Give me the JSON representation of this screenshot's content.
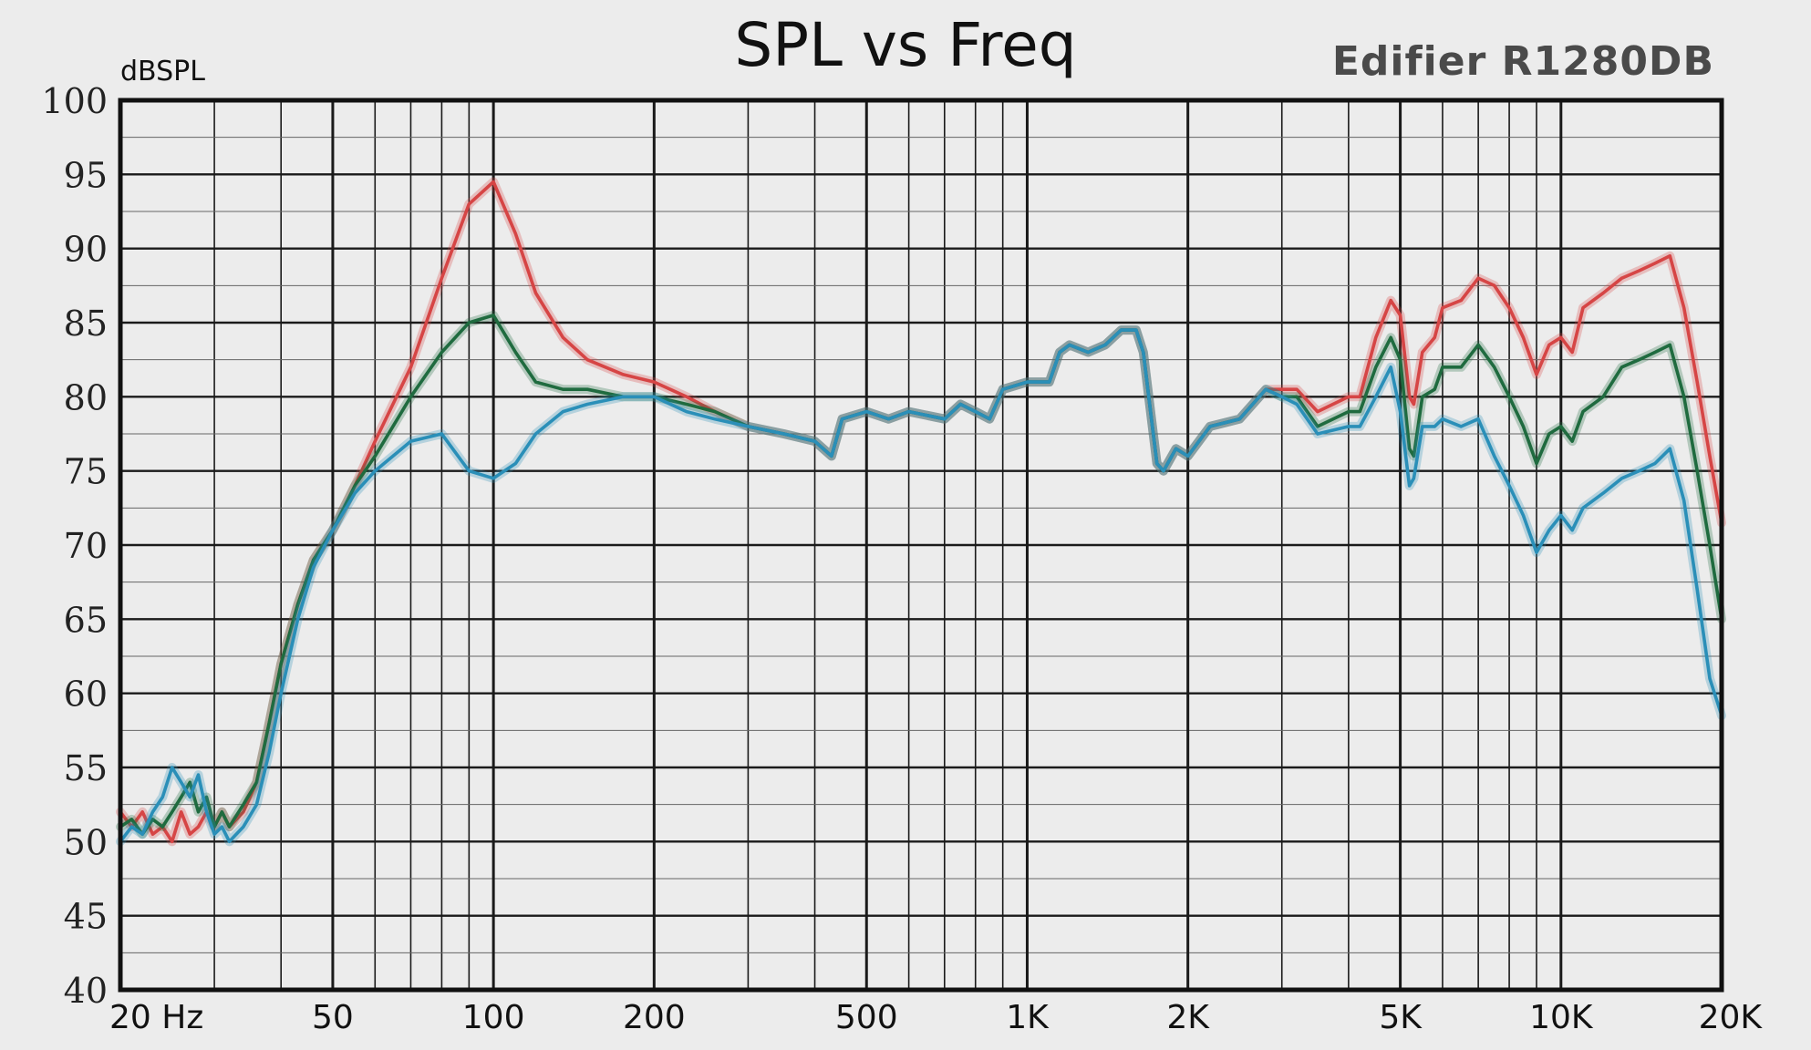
{
  "chart_data": {
    "type": "line",
    "title": "SPL vs Freq",
    "subtitle": "Edifier R1280DB",
    "xlabel": "",
    "ylabel": "dBSPL",
    "x_scale": "log",
    "xlim": [
      20,
      20000
    ],
    "ylim": [
      40,
      100
    ],
    "grid": true,
    "x_ticks": [
      {
        "value": 20,
        "label": "20 Hz"
      },
      {
        "value": 50,
        "label": "50"
      },
      {
        "value": 100,
        "label": "100"
      },
      {
        "value": 200,
        "label": "200"
      },
      {
        "value": 500,
        "label": "500"
      },
      {
        "value": 1000,
        "label": "1K"
      },
      {
        "value": 2000,
        "label": "2K"
      },
      {
        "value": 5000,
        "label": "5K"
      },
      {
        "value": 10000,
        "label": "10K"
      },
      {
        "value": 20000,
        "label": "20K"
      }
    ],
    "y_ticks": [
      100,
      95,
      90,
      85,
      80,
      75,
      70,
      65,
      60,
      55,
      50,
      45,
      40
    ],
    "series": [
      {
        "color": "#d64545",
        "points": [
          [
            20,
            52
          ],
          [
            21,
            51
          ],
          [
            22,
            52
          ],
          [
            23,
            50.5
          ],
          [
            24,
            51
          ],
          [
            25,
            50
          ],
          [
            26,
            52
          ],
          [
            27,
            50.5
          ],
          [
            28,
            51
          ],
          [
            29,
            52
          ],
          [
            30,
            51
          ],
          [
            31,
            52
          ],
          [
            32,
            51
          ],
          [
            34,
            52
          ],
          [
            36,
            54
          ],
          [
            38,
            58
          ],
          [
            40,
            62
          ],
          [
            43,
            66
          ],
          [
            46,
            69
          ],
          [
            50,
            71
          ],
          [
            55,
            74
          ],
          [
            60,
            77
          ],
          [
            70,
            82
          ],
          [
            80,
            88
          ],
          [
            90,
            93
          ],
          [
            100,
            94.5
          ],
          [
            110,
            91
          ],
          [
            120,
            87
          ],
          [
            135,
            84
          ],
          [
            150,
            82.5
          ],
          [
            175,
            81.5
          ],
          [
            200,
            81
          ],
          [
            230,
            80
          ],
          [
            260,
            79
          ],
          [
            300,
            78
          ],
          [
            350,
            77.5
          ],
          [
            400,
            77
          ],
          [
            430,
            76
          ],
          [
            450,
            78.5
          ],
          [
            500,
            79
          ],
          [
            550,
            78.5
          ],
          [
            600,
            79
          ],
          [
            700,
            78.5
          ],
          [
            750,
            79.5
          ],
          [
            800,
            79
          ],
          [
            850,
            78.5
          ],
          [
            900,
            80.5
          ],
          [
            1000,
            81
          ],
          [
            1100,
            81
          ],
          [
            1150,
            83
          ],
          [
            1200,
            83.5
          ],
          [
            1300,
            83
          ],
          [
            1400,
            83.5
          ],
          [
            1500,
            84.5
          ],
          [
            1600,
            84.5
          ],
          [
            1650,
            83
          ],
          [
            1750,
            75.5
          ],
          [
            1800,
            75
          ],
          [
            1900,
            76.5
          ],
          [
            2000,
            76
          ],
          [
            2200,
            78
          ],
          [
            2500,
            78.5
          ],
          [
            2800,
            80.5
          ],
          [
            3000,
            80.5
          ],
          [
            3200,
            80.5
          ],
          [
            3500,
            79
          ],
          [
            4000,
            80
          ],
          [
            4200,
            80
          ],
          [
            4500,
            84
          ],
          [
            4800,
            86.5
          ],
          [
            5000,
            85.5
          ],
          [
            5200,
            80
          ],
          [
            5300,
            79.5
          ],
          [
            5500,
            83
          ],
          [
            5800,
            84
          ],
          [
            6000,
            86
          ],
          [
            6500,
            86.5
          ],
          [
            7000,
            88
          ],
          [
            7500,
            87.5
          ],
          [
            8000,
            86
          ],
          [
            8500,
            84
          ],
          [
            9000,
            81.5
          ],
          [
            9500,
            83.5
          ],
          [
            10000,
            84
          ],
          [
            10500,
            83
          ],
          [
            11000,
            86
          ],
          [
            12000,
            87
          ],
          [
            13000,
            88
          ],
          [
            14000,
            88.5
          ],
          [
            15000,
            89
          ],
          [
            16000,
            89.5
          ],
          [
            17000,
            86
          ],
          [
            18000,
            81
          ],
          [
            19000,
            76
          ],
          [
            20000,
            71.5
          ]
        ]
      },
      {
        "color": "#1f6b3f",
        "points": [
          [
            20,
            51
          ],
          [
            21,
            51.5
          ],
          [
            22,
            50.5
          ],
          [
            23,
            51.5
          ],
          [
            24,
            51
          ],
          [
            25,
            52
          ],
          [
            26,
            53
          ],
          [
            27,
            54
          ],
          [
            28,
            52
          ],
          [
            29,
            53
          ],
          [
            30,
            51
          ],
          [
            31,
            52
          ],
          [
            32,
            51
          ],
          [
            34,
            52.5
          ],
          [
            36,
            54
          ],
          [
            38,
            58
          ],
          [
            40,
            62
          ],
          [
            43,
            66
          ],
          [
            46,
            69
          ],
          [
            50,
            71
          ],
          [
            55,
            74
          ],
          [
            60,
            76
          ],
          [
            70,
            80
          ],
          [
            80,
            83
          ],
          [
            90,
            85
          ],
          [
            100,
            85.5
          ],
          [
            110,
            83
          ],
          [
            120,
            81
          ],
          [
            135,
            80.5
          ],
          [
            150,
            80.5
          ],
          [
            175,
            80
          ],
          [
            200,
            80
          ],
          [
            230,
            79.5
          ],
          [
            260,
            79
          ],
          [
            300,
            78
          ],
          [
            350,
            77.5
          ],
          [
            400,
            77
          ],
          [
            430,
            76
          ],
          [
            450,
            78.5
          ],
          [
            500,
            79
          ],
          [
            550,
            78.5
          ],
          [
            600,
            79
          ],
          [
            700,
            78.5
          ],
          [
            750,
            79.5
          ],
          [
            800,
            79
          ],
          [
            850,
            78.5
          ],
          [
            900,
            80.5
          ],
          [
            1000,
            81
          ],
          [
            1100,
            81
          ],
          [
            1150,
            83
          ],
          [
            1200,
            83.5
          ],
          [
            1300,
            83
          ],
          [
            1400,
            83.5
          ],
          [
            1500,
            84.5
          ],
          [
            1600,
            84.5
          ],
          [
            1650,
            83
          ],
          [
            1750,
            75.5
          ],
          [
            1800,
            75
          ],
          [
            1900,
            76.5
          ],
          [
            2000,
            76
          ],
          [
            2200,
            78
          ],
          [
            2500,
            78.5
          ],
          [
            2800,
            80.5
          ],
          [
            3000,
            80
          ],
          [
            3200,
            80
          ],
          [
            3500,
            78
          ],
          [
            4000,
            79
          ],
          [
            4200,
            79
          ],
          [
            4500,
            82
          ],
          [
            4800,
            84
          ],
          [
            5000,
            82.5
          ],
          [
            5200,
            76.5
          ],
          [
            5300,
            76
          ],
          [
            5500,
            80
          ],
          [
            5800,
            80.5
          ],
          [
            6000,
            82
          ],
          [
            6500,
            82
          ],
          [
            7000,
            83.5
          ],
          [
            7500,
            82
          ],
          [
            8000,
            80
          ],
          [
            8500,
            78
          ],
          [
            9000,
            75.5
          ],
          [
            9500,
            77.5
          ],
          [
            10000,
            78
          ],
          [
            10500,
            77
          ],
          [
            11000,
            79
          ],
          [
            12000,
            80
          ],
          [
            13000,
            82
          ],
          [
            14000,
            82.5
          ],
          [
            15000,
            83
          ],
          [
            16000,
            83.5
          ],
          [
            17000,
            80
          ],
          [
            18000,
            75
          ],
          [
            19000,
            70
          ],
          [
            20000,
            65
          ]
        ]
      },
      {
        "color": "#2a8fb8",
        "points": [
          [
            20,
            50
          ],
          [
            21,
            51
          ],
          [
            22,
            50.5
          ],
          [
            23,
            52
          ],
          [
            24,
            53
          ],
          [
            25,
            55
          ],
          [
            26,
            54
          ],
          [
            27,
            53
          ],
          [
            28,
            54.5
          ],
          [
            29,
            52
          ],
          [
            30,
            50.5
          ],
          [
            31,
            51
          ],
          [
            32,
            50
          ],
          [
            34,
            51
          ],
          [
            36,
            52.5
          ],
          [
            38,
            56
          ],
          [
            40,
            60
          ],
          [
            43,
            65
          ],
          [
            46,
            68.5
          ],
          [
            50,
            71
          ],
          [
            55,
            73.5
          ],
          [
            60,
            75
          ],
          [
            70,
            77
          ],
          [
            80,
            77.5
          ],
          [
            90,
            75
          ],
          [
            100,
            74.5
          ],
          [
            110,
            75.5
          ],
          [
            120,
            77.5
          ],
          [
            135,
            79
          ],
          [
            150,
            79.5
          ],
          [
            175,
            80
          ],
          [
            200,
            80
          ],
          [
            230,
            79
          ],
          [
            260,
            78.5
          ],
          [
            300,
            78
          ],
          [
            350,
            77.5
          ],
          [
            400,
            77
          ],
          [
            430,
            76
          ],
          [
            450,
            78.5
          ],
          [
            500,
            79
          ],
          [
            550,
            78.5
          ],
          [
            600,
            79
          ],
          [
            700,
            78.5
          ],
          [
            750,
            79.5
          ],
          [
            800,
            79
          ],
          [
            850,
            78.5
          ],
          [
            900,
            80.5
          ],
          [
            1000,
            81
          ],
          [
            1100,
            81
          ],
          [
            1150,
            83
          ],
          [
            1200,
            83.5
          ],
          [
            1300,
            83
          ],
          [
            1400,
            83.5
          ],
          [
            1500,
            84.5
          ],
          [
            1600,
            84.5
          ],
          [
            1650,
            83
          ],
          [
            1750,
            75.5
          ],
          [
            1800,
            75
          ],
          [
            1900,
            76.5
          ],
          [
            2000,
            76
          ],
          [
            2200,
            78
          ],
          [
            2500,
            78.5
          ],
          [
            2800,
            80.5
          ],
          [
            3000,
            80
          ],
          [
            3200,
            79.5
          ],
          [
            3500,
            77.5
          ],
          [
            4000,
            78
          ],
          [
            4200,
            78
          ],
          [
            4500,
            80
          ],
          [
            4800,
            82
          ],
          [
            5000,
            79
          ],
          [
            5200,
            74
          ],
          [
            5300,
            74.5
          ],
          [
            5500,
            78
          ],
          [
            5800,
            78
          ],
          [
            6000,
            78.5
          ],
          [
            6500,
            78
          ],
          [
            7000,
            78.5
          ],
          [
            7500,
            76
          ],
          [
            8000,
            74
          ],
          [
            8500,
            72
          ],
          [
            9000,
            69.5
          ],
          [
            9500,
            71
          ],
          [
            10000,
            72
          ],
          [
            10500,
            71
          ],
          [
            11000,
            72.5
          ],
          [
            12000,
            73.5
          ],
          [
            13000,
            74.5
          ],
          [
            14000,
            75
          ],
          [
            15000,
            75.5
          ],
          [
            16000,
            76.5
          ],
          [
            17000,
            73
          ],
          [
            18000,
            67
          ],
          [
            19000,
            61
          ],
          [
            20000,
            58.5
          ]
        ]
      }
    ]
  }
}
